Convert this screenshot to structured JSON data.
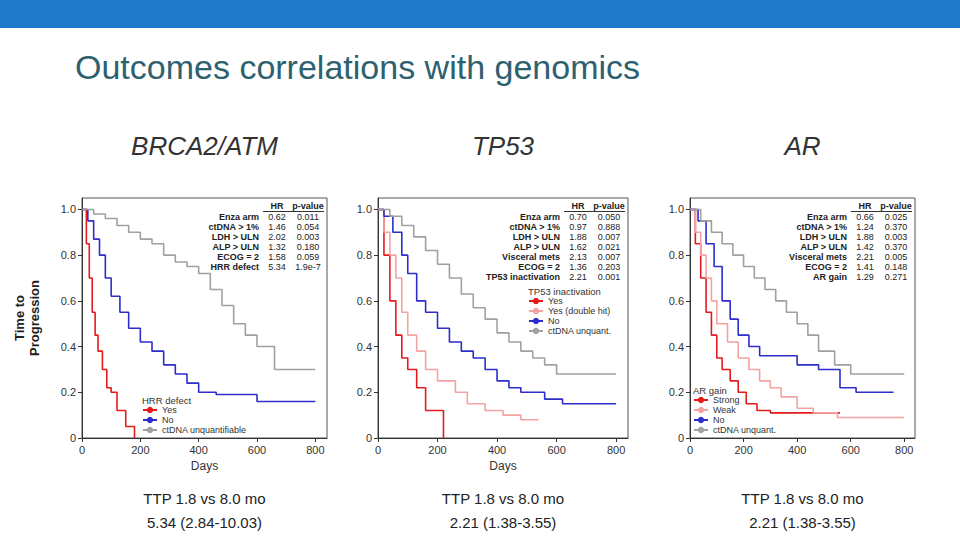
{
  "slide_title": "Outcomes correlations with genomics",
  "chart_data": [
    {
      "type": "line",
      "title": "BRCA2/ATM",
      "x_label": "Days",
      "y_label": "Time to Progression",
      "xlim": [
        0,
        840
      ],
      "xticks": [
        0,
        200,
        400,
        600,
        800
      ],
      "ylim": [
        0,
        1.05
      ],
      "yticks": [
        0,
        0.2,
        0.4,
        0.6,
        0.8,
        {
          "value": 1,
          "label": "1.0"
        }
      ],
      "grid": false,
      "legend": "lower left",
      "legend_title": "HRR defect",
      "series": [
        {
          "name": "Yes",
          "color": "#e41a1c",
          "x": [
            0,
            15,
            25,
            35,
            45,
            55,
            70,
            85,
            100,
            120,
            150,
            180
          ],
          "values": [
            1,
            0.85,
            0.7,
            0.55,
            0.45,
            0.38,
            0.3,
            0.22,
            0.2,
            0.12,
            0.05,
            0
          ]
        },
        {
          "name": "No",
          "color": "#2d2dcc",
          "x": [
            0,
            20,
            40,
            60,
            80,
            100,
            130,
            160,
            200,
            240,
            280,
            320,
            360,
            400,
            460,
            600,
            800
          ],
          "values": [
            1,
            0.95,
            0.87,
            0.8,
            0.7,
            0.62,
            0.55,
            0.48,
            0.42,
            0.38,
            0.32,
            0.28,
            0.24,
            0.2,
            0.19,
            0.16,
            0.16
          ]
        },
        {
          "name": "ctDNA unquantifiable",
          "color": "#a0a0a0",
          "x": [
            0,
            40,
            80,
            120,
            160,
            200,
            240,
            280,
            320,
            360,
            400,
            440,
            480,
            520,
            560,
            600,
            660,
            800
          ],
          "values": [
            1,
            0.98,
            0.96,
            0.93,
            0.9,
            0.87,
            0.85,
            0.8,
            0.77,
            0.75,
            0.72,
            0.65,
            0.58,
            0.5,
            0.45,
            0.4,
            0.3,
            0.3
          ]
        }
      ],
      "hr_table": {
        "columns": [
          "HR",
          "p-value"
        ],
        "rows": [
          [
            "Enza arm",
            "0.62",
            "0.011"
          ],
          [
            "ctDNA > 1%",
            "1.46",
            "0.054"
          ],
          [
            "LDH > ULN",
            "2.02",
            "0.003"
          ],
          [
            "ALP > ULN",
            "1.32",
            "0.180"
          ],
          [
            "ECOG = 2",
            "1.58",
            "0.059"
          ],
          [
            "HRR defect",
            "5.34",
            "1.9e-7"
          ]
        ]
      },
      "annotations": [
        "TTP 1.8 vs 8.0 mo",
        "5.34 (2.84-10.03)"
      ]
    },
    {
      "type": "line",
      "title": "TP53",
      "x_label": "Days",
      "xlim": [
        0,
        840
      ],
      "xticks": [
        0,
        200,
        400,
        600,
        800
      ],
      "ylim": [
        0,
        1.05
      ],
      "yticks": [
        0,
        0.2,
        0.4,
        0.6,
        0.8,
        {
          "value": 1,
          "label": "1.0"
        }
      ],
      "grid": false,
      "legend": "right",
      "legend_title": "TP53 inactivation",
      "series": [
        {
          "name": "Yes",
          "color": "#e41a1c",
          "x": [
            0,
            20,
            40,
            60,
            80,
            100,
            130,
            160,
            220
          ],
          "values": [
            1,
            0.8,
            0.6,
            0.45,
            0.35,
            0.3,
            0.22,
            0.12,
            0
          ]
        },
        {
          "name": "Yes (double hit)",
          "color": "#f4a3a3",
          "x": [
            0,
            20,
            40,
            60,
            80,
            100,
            130,
            160,
            200,
            260,
            300,
            360,
            420,
            480,
            540
          ],
          "values": [
            1,
            0.9,
            0.8,
            0.7,
            0.55,
            0.45,
            0.38,
            0.3,
            0.25,
            0.2,
            0.15,
            0.12,
            0.1,
            0.08,
            0.08
          ]
        },
        {
          "name": "No",
          "color": "#2d2dcc",
          "x": [
            0,
            20,
            50,
            80,
            100,
            130,
            160,
            200,
            240,
            280,
            320,
            360,
            400,
            440,
            480,
            560,
            620,
            800
          ],
          "values": [
            1,
            0.97,
            0.9,
            0.8,
            0.72,
            0.6,
            0.55,
            0.48,
            0.42,
            0.38,
            0.35,
            0.3,
            0.25,
            0.22,
            0.2,
            0.17,
            0.15,
            0.15
          ]
        },
        {
          "name": "ctDNA unquant.",
          "color": "#a0a0a0",
          "x": [
            0,
            40,
            80,
            120,
            160,
            200,
            240,
            280,
            320,
            360,
            400,
            440,
            480,
            520,
            560,
            600,
            800
          ],
          "values": [
            1,
            0.97,
            0.93,
            0.88,
            0.82,
            0.76,
            0.7,
            0.63,
            0.57,
            0.52,
            0.46,
            0.42,
            0.38,
            0.35,
            0.32,
            0.28,
            0.28
          ]
        }
      ],
      "hr_table": {
        "columns": [
          "HR",
          "p-value"
        ],
        "rows": [
          [
            "Enza arm",
            "0.70",
            "0.050"
          ],
          [
            "ctDNA > 1%",
            "0.97",
            "0.888"
          ],
          [
            "LDH > ULN",
            "1.88",
            "0.007"
          ],
          [
            "ALP > ULN",
            "1.62",
            "0.021"
          ],
          [
            "Visceral mets",
            "2.13",
            "0.007"
          ],
          [
            "ECOG = 2",
            "1.36",
            "0.203"
          ],
          [
            "TP53 inactivation",
            "2.21",
            "0.001"
          ]
        ]
      },
      "annotations": [
        "TTP 1.8 vs 8.0 mo",
        "2.21 (1.38-3.55)"
      ]
    },
    {
      "type": "line",
      "title": "AR",
      "xlim": [
        0,
        840
      ],
      "xticks": [
        0,
        200,
        400,
        600,
        800
      ],
      "ylim": [
        0,
        1.05
      ],
      "yticks": [
        0,
        0.2,
        0.4,
        0.6,
        0.8,
        {
          "value": 1,
          "label": "1.0"
        }
      ],
      "grid": false,
      "legend": "lower left",
      "legend_title": "AR gain",
      "series": [
        {
          "name": "Strong",
          "color": "#e41a1c",
          "x": [
            0,
            20,
            40,
            60,
            80,
            100,
            120,
            150,
            180,
            210,
            250,
            300,
            560
          ],
          "values": [
            1,
            0.85,
            0.7,
            0.55,
            0.45,
            0.35,
            0.3,
            0.25,
            0.2,
            0.15,
            0.12,
            0.11,
            0.11
          ]
        },
        {
          "name": "Weak",
          "color": "#f4a3a3",
          "x": [
            0,
            20,
            40,
            60,
            80,
            100,
            140,
            180,
            220,
            260,
            300,
            340,
            400,
            460,
            550,
            800
          ],
          "values": [
            1,
            0.9,
            0.8,
            0.7,
            0.6,
            0.5,
            0.42,
            0.35,
            0.3,
            0.25,
            0.22,
            0.18,
            0.13,
            0.11,
            0.09,
            0.09
          ]
        },
        {
          "name": "No",
          "color": "#2d2dcc",
          "x": [
            0,
            30,
            60,
            90,
            120,
            150,
            180,
            220,
            260,
            400,
            480,
            560,
            620,
            760
          ],
          "values": [
            1,
            0.95,
            0.85,
            0.75,
            0.6,
            0.52,
            0.45,
            0.4,
            0.36,
            0.32,
            0.3,
            0.22,
            0.2,
            0.2
          ]
        },
        {
          "name": "ctDNA unquant.",
          "color": "#a0a0a0",
          "x": [
            0,
            40,
            80,
            120,
            160,
            200,
            240,
            280,
            320,
            360,
            400,
            440,
            480,
            540,
            600,
            800
          ],
          "values": [
            1,
            0.95,
            0.9,
            0.85,
            0.8,
            0.75,
            0.7,
            0.65,
            0.6,
            0.55,
            0.5,
            0.45,
            0.38,
            0.32,
            0.28,
            0.28
          ]
        }
      ],
      "hr_table": {
        "columns": [
          "HR",
          "p-value"
        ],
        "rows": [
          [
            "Enza arm",
            "0.66",
            "0.025"
          ],
          [
            "ctDNA > 1%",
            "1.24",
            "0.370"
          ],
          [
            "LDH > ULN",
            "1.88",
            "0.003"
          ],
          [
            "ALP > ULN",
            "1.42",
            "0.370"
          ],
          [
            "Visceral mets",
            "2.21",
            "0.005"
          ],
          [
            "ECOG = 2",
            "1.41",
            "0.148"
          ],
          [
            "AR gain",
            "1.29",
            "0.271"
          ]
        ]
      },
      "annotations": [
        "TTP 1.8 vs 8.0 mo",
        "2.21 (1.38-3.55)"
      ]
    }
  ]
}
